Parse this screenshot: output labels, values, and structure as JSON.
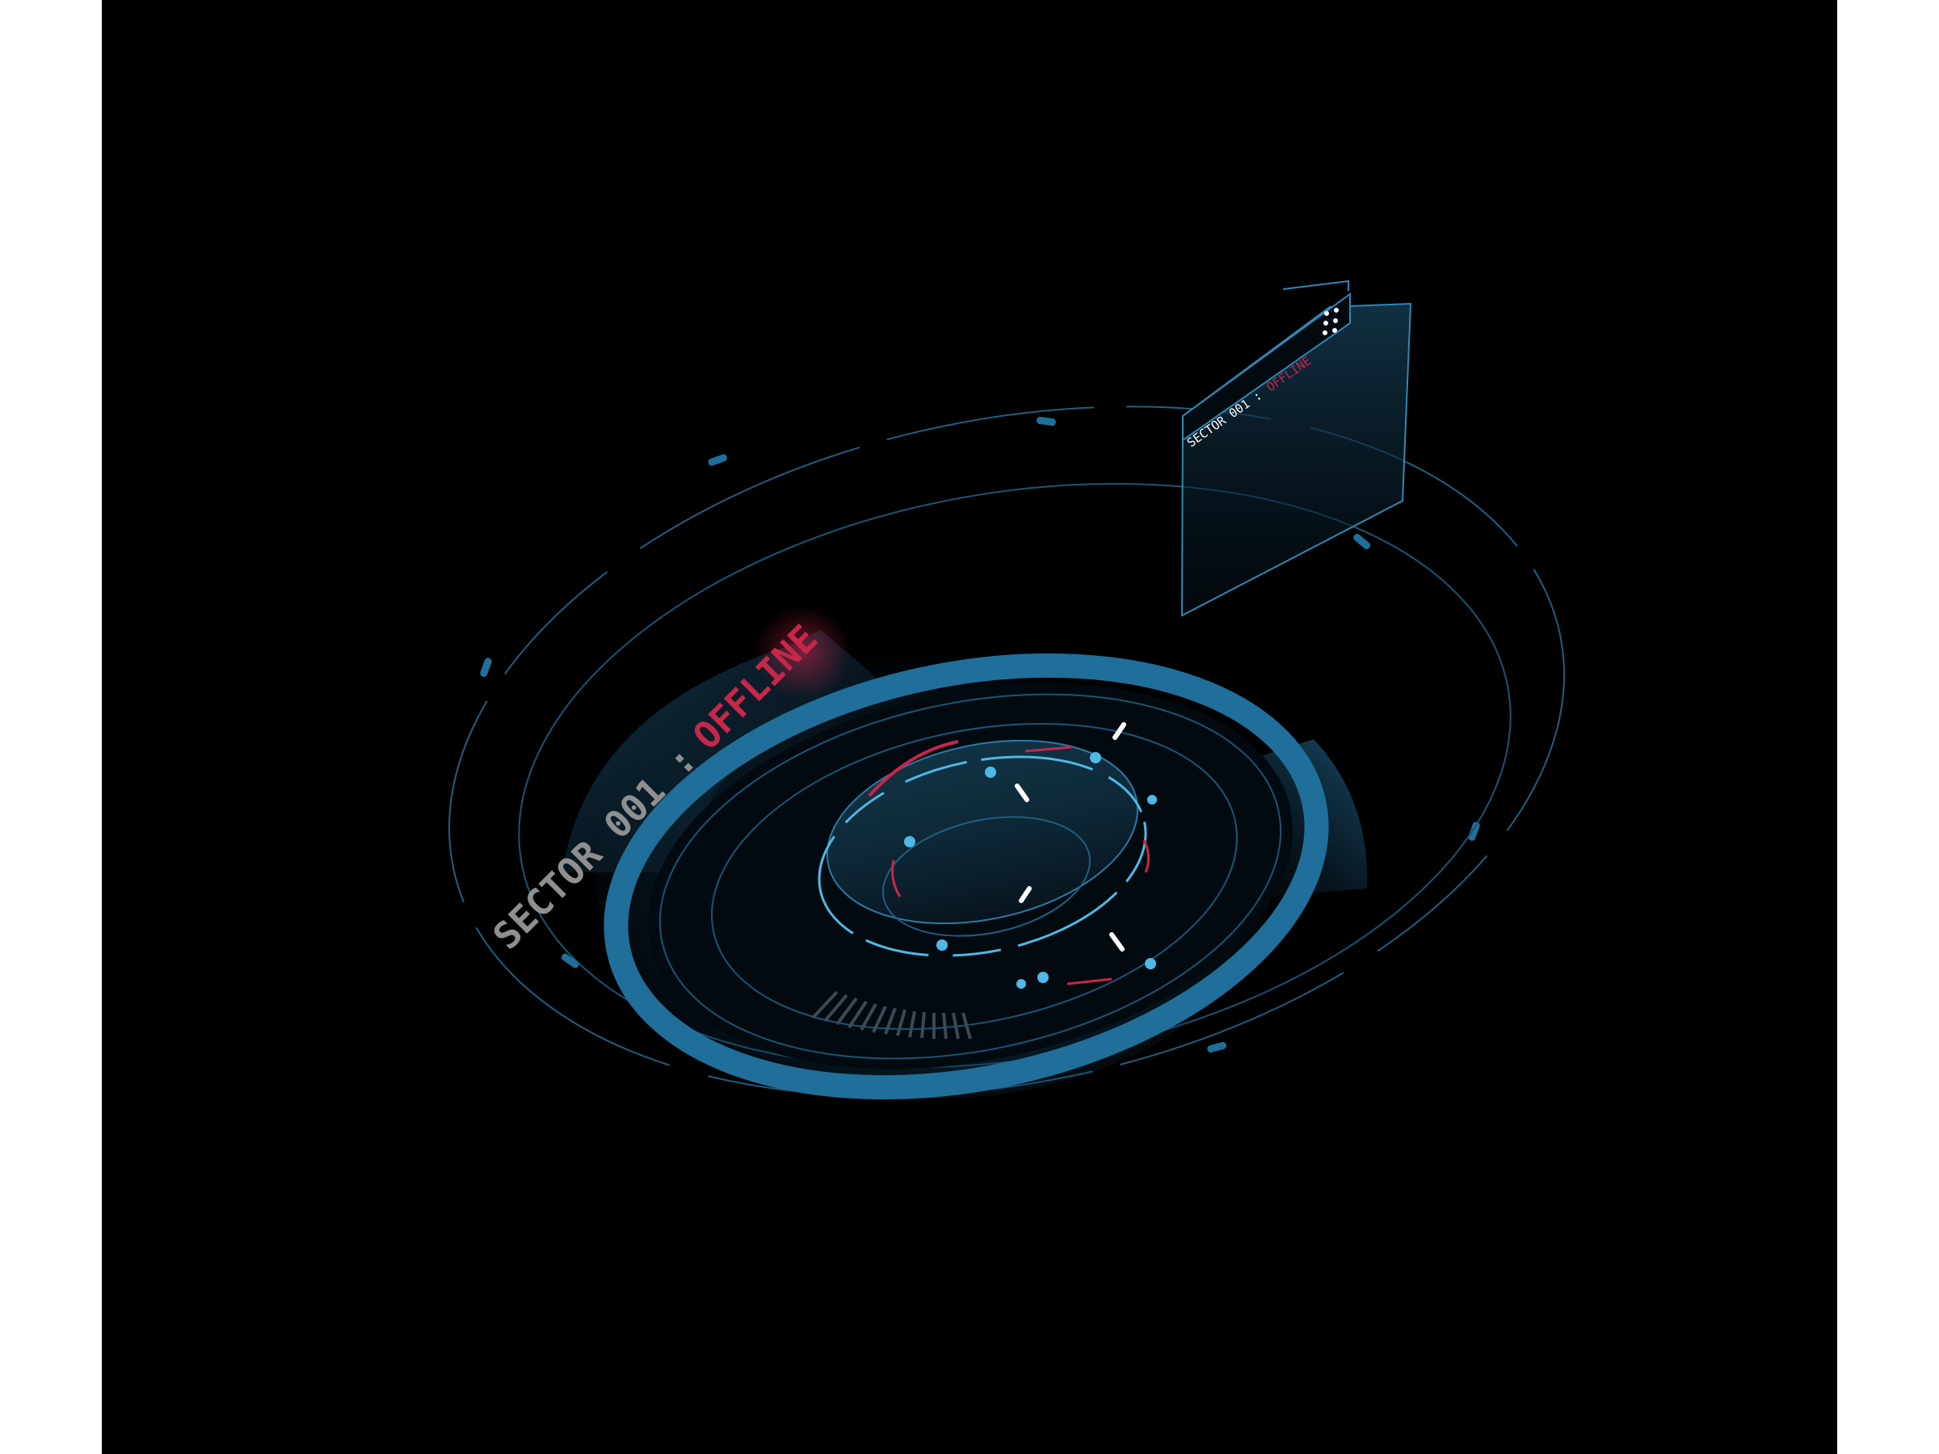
{
  "hud": {
    "sector_label": "SECTOR 001 :",
    "status_label": "OFFLINE"
  },
  "panel": {
    "sector_label": "SECTOR 001 :",
    "status_label": "OFFLINE",
    "menu_icon": "dots-grid-icon"
  },
  "colors": {
    "background": "#000000",
    "frame": "#ffffff",
    "primary_cyan": "#1f6f9a",
    "light_cyan": "#4fb8e6",
    "alert_red": "#c8264a",
    "label_gray": "#8f8f8f",
    "tick_white": "#ffffff"
  }
}
